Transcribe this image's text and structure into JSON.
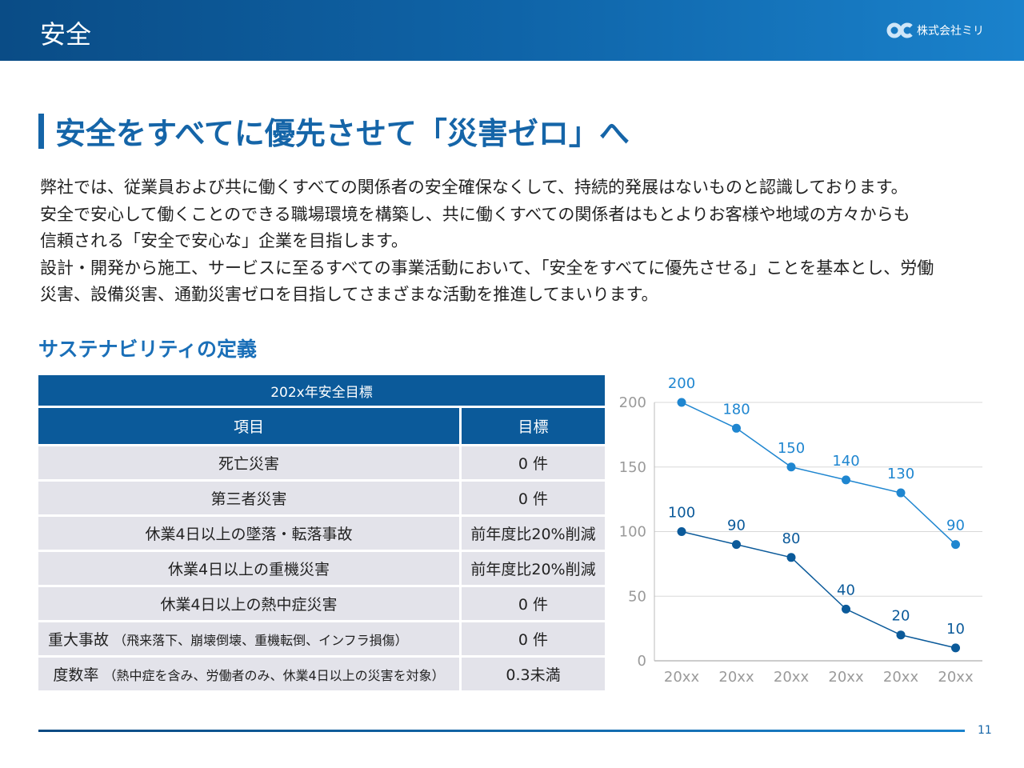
{
  "header": {
    "title": "安全",
    "company": "株式会社ミリ",
    "logo_icon": "oc-logo-icon"
  },
  "heading": "安全をすべてに優先させて「災害ゼロ」へ",
  "body": [
    "弊社では、従業員および共に働くすべての関係者の安全確保なくして、持続的発展はないものと認識しております。",
    "安全で安心して働くことのできる職場環境を構築し、共に働くすべての関係者はもとよりお客様や地域の方々からも",
    "信頼される「安全で安心な」企業を目指します。",
    "設計・開発から施工、サービスに至るすべての事業活動において、「安全をすべてに優先させる」ことを基本とし、労働",
    "災害、設備災害、通勤災害ゼロを目指してさまざまな活動を推進してまいります。"
  ],
  "subheading": "サステナビリティの定義",
  "table": {
    "caption": "202x年安全目標",
    "headers": [
      "項目",
      "目標"
    ],
    "rows": [
      {
        "item": "死亡災害",
        "note": "",
        "target": "0 件"
      },
      {
        "item": "第三者災害",
        "note": "",
        "target": "0 件"
      },
      {
        "item": "休業4日以上の墜落・転落事故",
        "note": "",
        "target": "前年度比20%削減"
      },
      {
        "item": "休業4日以上の重機災害",
        "note": "",
        "target": "前年度比20%削減"
      },
      {
        "item": "休業4日以上の熱中症災害",
        "note": "",
        "target": "0 件"
      },
      {
        "item": "重大事故",
        "note": "（飛来落下、崩壊倒壊、重機転倒、インフラ損傷）",
        "target": "0 件"
      },
      {
        "item": "度数率",
        "note": "（熱中症を含み、労働者のみ、休業4日以上の災害を対象）",
        "target": "0.3未満"
      }
    ]
  },
  "chart_data": {
    "type": "line",
    "categories": [
      "20xx",
      "20xx",
      "20xx",
      "20xx",
      "20xx",
      "20xx"
    ],
    "series": [
      {
        "values": [
          200,
          180,
          150,
          140,
          130,
          90
        ],
        "color": "#1f86d0"
      },
      {
        "values": [
          100,
          90,
          80,
          40,
          20,
          10
        ],
        "color": "#0b5a9a"
      }
    ],
    "ylim": [
      0,
      200
    ],
    "yticks": [
      0,
      50,
      100,
      150,
      200
    ],
    "grid": true,
    "data_labels": true,
    "axis_label_color": "#9a9a9a"
  },
  "footer": {
    "page": "11"
  }
}
